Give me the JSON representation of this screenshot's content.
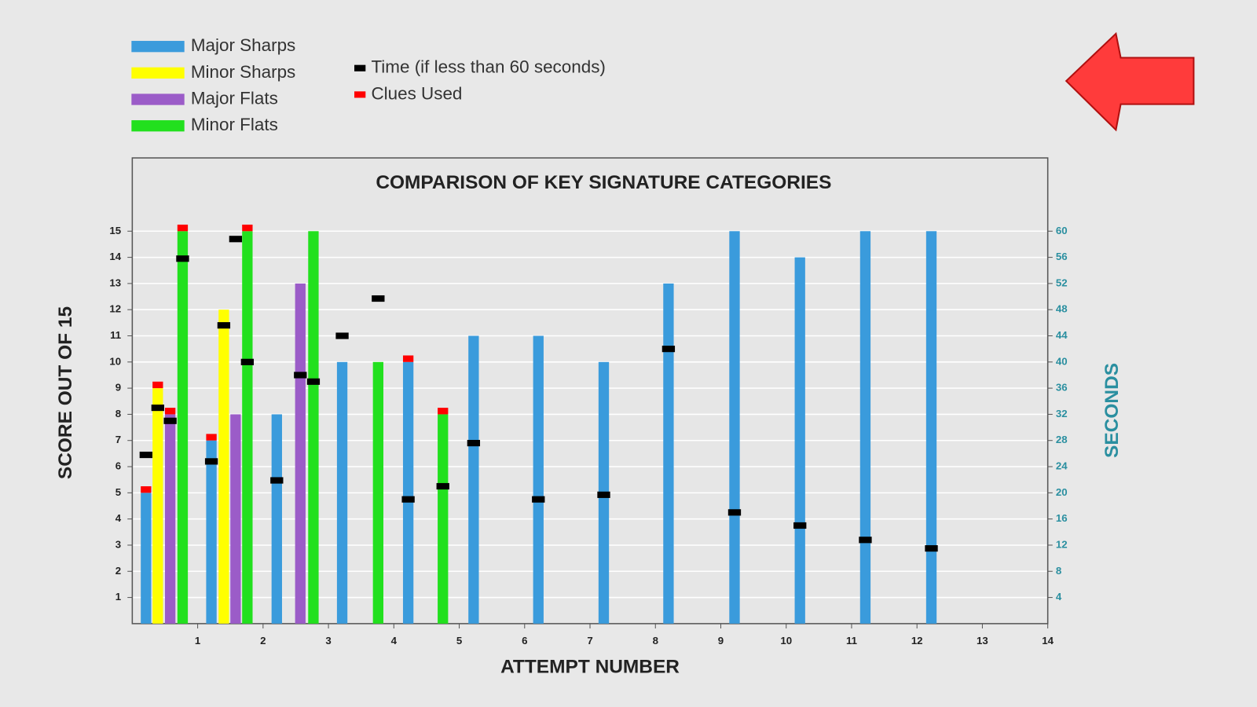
{
  "chart_data": {
    "type": "bar",
    "title": "COMPARISON OF KEY SIGNATURE CATEGORIES",
    "xlabel": "ATTEMPT NUMBER",
    "ylabel": "SCORE OUT OF 15",
    "y2label": "SECONDS",
    "xlim": [
      0,
      14
    ],
    "xticks": [
      1,
      2,
      3,
      4,
      5,
      6,
      7,
      8,
      9,
      10,
      11,
      12,
      13,
      14
    ],
    "ylim": [
      0,
      17.8
    ],
    "yticks": [
      1,
      2,
      3,
      4,
      5,
      6,
      7,
      8,
      9,
      10,
      11,
      12,
      13,
      14,
      15
    ],
    "y2lim": [
      0,
      71.2
    ],
    "y2ticks": [
      4,
      8,
      12,
      16,
      20,
      24,
      28,
      32,
      36,
      40,
      44,
      48,
      52,
      56,
      60
    ],
    "grid": true,
    "series": [
      {
        "name": "Major Sharps",
        "type": "bar",
        "color": "#3a9bdc",
        "x": [
          0.21,
          1.21,
          2.21,
          3.21,
          4.22,
          5.22,
          6.21,
          7.21,
          8.2,
          9.21,
          10.21,
          11.21,
          12.22
        ],
        "values": [
          5,
          7,
          8,
          10,
          10,
          11,
          11,
          10,
          13,
          15,
          14,
          15,
          15
        ]
      },
      {
        "name": "Minor Sharps",
        "type": "bar",
        "color": "#ffff00",
        "x": [
          0.39,
          1.4
        ],
        "values": [
          9,
          12
        ]
      },
      {
        "name": "Major Flats",
        "type": "bar",
        "color": "#9b5cc8",
        "x": [
          0.58,
          1.58,
          2.57
        ],
        "values": [
          8,
          8,
          13
        ]
      },
      {
        "name": "Minor Flats",
        "type": "bar",
        "color": "#22e01e",
        "x": [
          0.77,
          1.76,
          2.77,
          3.76,
          4.75
        ],
        "values": [
          15,
          15,
          15,
          10,
          8
        ]
      },
      {
        "name": "Time (if less than 60 seconds)",
        "type": "scatter",
        "axis": "y2",
        "color": "#000000",
        "x": [
          0.21,
          0.39,
          0.58,
          0.77,
          1.21,
          1.4,
          1.58,
          1.76,
          2.21,
          2.57,
          2.77,
          3.21,
          3.76,
          4.22,
          4.75,
          5.22,
          6.21,
          7.21,
          8.2,
          9.21,
          10.21,
          11.21,
          12.22
        ],
        "values": [
          25.8,
          33,
          31,
          55.8,
          24.8,
          45.6,
          58.8,
          40,
          21.9,
          38,
          37,
          44,
          49.7,
          19,
          21,
          27.6,
          19,
          19.7,
          42,
          17,
          15,
          12.8,
          11.5
        ]
      },
      {
        "name": "Clues Used",
        "type": "bar",
        "stacked": true,
        "color": "#ff0000",
        "x": [
          0.21,
          0.39,
          0.58,
          0.77,
          1.21,
          1.76,
          4.22,
          4.75
        ],
        "values": [
          0.25,
          0.25,
          0.25,
          0.25,
          0.25,
          0.25,
          0.25,
          0.25
        ]
      }
    ]
  }
}
